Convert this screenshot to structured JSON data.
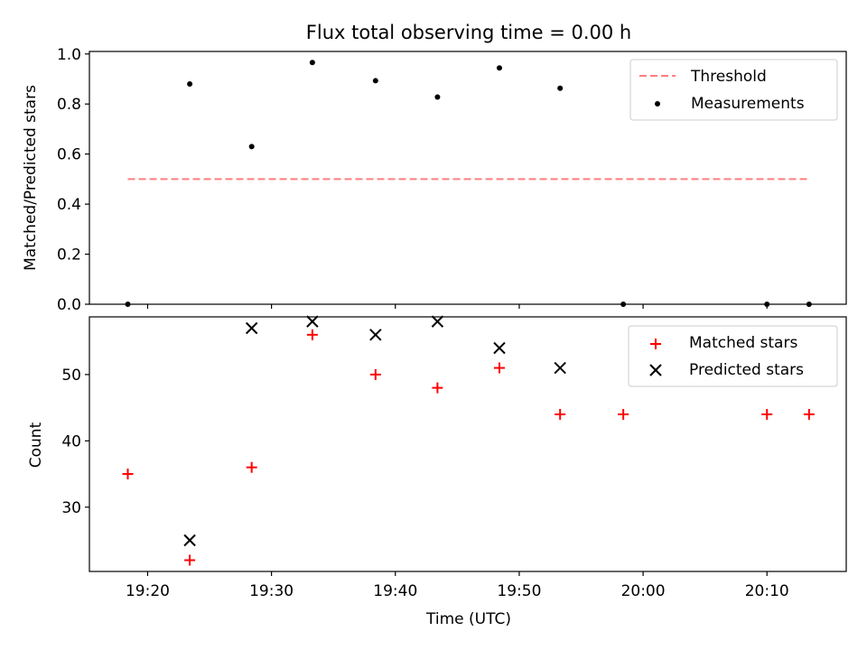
{
  "chart_data": [
    {
      "type": "scatter",
      "title": "Flux total observing time = 0.00 h",
      "ylabel": "Matched/Predicted stars",
      "ylim": [
        0,
        1.01
      ],
      "yticks": [
        0.0,
        0.2,
        0.4,
        0.6,
        0.8,
        1.0
      ],
      "ytick_labels": [
        "0.0",
        "0.2",
        "0.4",
        "0.6",
        "0.8",
        "1.0"
      ],
      "threshold": {
        "name": "Threshold",
        "y": 0.5,
        "x_start": 1158.4,
        "x_end": 1213.4,
        "color": "#ff7f7f"
      },
      "series": [
        {
          "name": "Measurements",
          "color": "#000000",
          "marker": "dot",
          "x": [
            1158.4,
            1163.4,
            1168.4,
            1173.3,
            1178.4,
            1183.4,
            1188.4,
            1193.3,
            1198.4,
            1210.0,
            1213.4
          ],
          "y": [
            0.0,
            0.88,
            0.63,
            0.966,
            0.893,
            0.828,
            0.944,
            0.863,
            0.0,
            0.0,
            0.0
          ]
        }
      ],
      "legend": {
        "position": "top-right",
        "entries": [
          "Threshold",
          "Measurements"
        ]
      }
    },
    {
      "type": "scatter",
      "xlabel": "Time (UTC)",
      "ylabel": "Count",
      "ylim": [
        20.3,
        58.7
      ],
      "yticks": [
        30,
        40,
        50
      ],
      "ytick_labels": [
        "30",
        "40",
        "50"
      ],
      "series": [
        {
          "name": "Matched stars",
          "color": "#ff0000",
          "marker": "plus",
          "x": [
            1158.4,
            1163.4,
            1168.4,
            1173.3,
            1178.4,
            1183.4,
            1188.4,
            1193.3,
            1198.4,
            1210.0,
            1213.4
          ],
          "y": [
            35,
            22,
            36,
            56,
            50,
            48,
            51,
            44,
            44,
            44,
            44
          ]
        },
        {
          "name": "Predicted stars",
          "color": "#000000",
          "marker": "x",
          "x": [
            1163.4,
            1168.4,
            1173.3,
            1178.4,
            1183.4,
            1188.4,
            1193.3
          ],
          "y": [
            25,
            57,
            58,
            56,
            58,
            54,
            51
          ]
        }
      ],
      "legend": {
        "position": "top-right",
        "entries": [
          "Matched stars",
          "Predicted stars"
        ]
      }
    }
  ],
  "x_axis": {
    "unit": "minutes",
    "xlim": [
      1155.3,
      1216.4
    ],
    "ticks": [
      1160,
      1170,
      1180,
      1190,
      1200,
      1210
    ],
    "tick_labels": [
      "19:20",
      "19:30",
      "19:40",
      "19:50",
      "20:00",
      "20:10"
    ]
  }
}
